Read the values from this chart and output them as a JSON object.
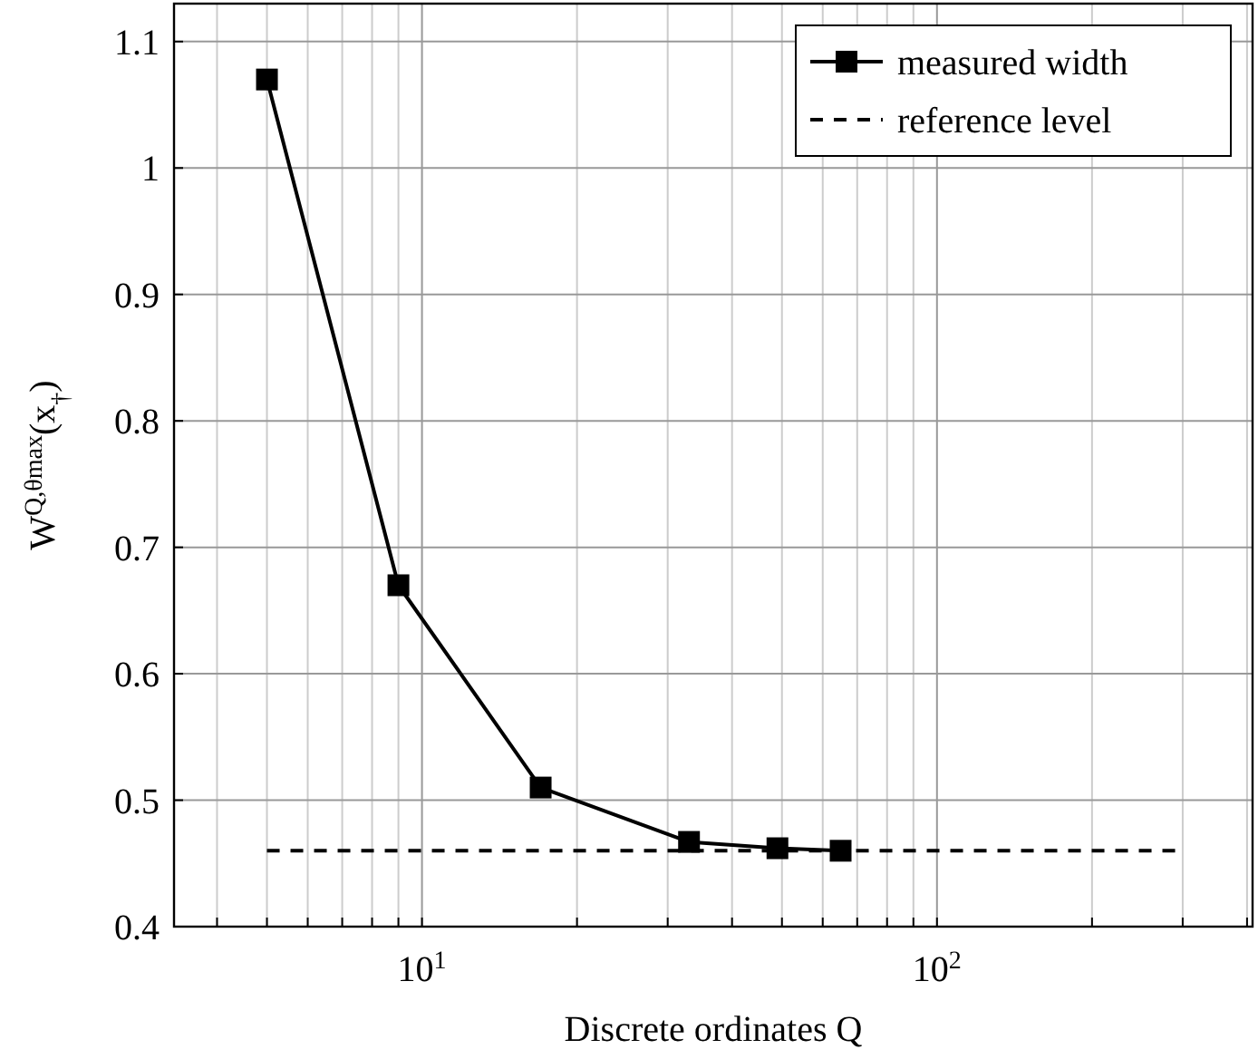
{
  "chart_data": {
    "type": "line",
    "xlabel": "Discrete ordinates Q",
    "ylabel": "W$^{Q,θmax}$(x$_{†}$)",
    "log": "x",
    "grid": true,
    "legend": "top right",
    "xlim": [
      3.3,
      410
    ],
    "ylim": [
      0.4,
      1.13
    ],
    "xticks": [
      {
        "value": 4,
        "label": null
      },
      {
        "value": 5,
        "label": null
      },
      {
        "value": 6,
        "label": null
      },
      {
        "value": 7,
        "label": null
      },
      {
        "value": 8,
        "label": null
      },
      {
        "value": 9,
        "label": null
      },
      {
        "value": 10,
        "label": "10$^{1}$"
      },
      {
        "value": 20,
        "label": null
      },
      {
        "value": 30,
        "label": null
      },
      {
        "value": 40,
        "label": null
      },
      {
        "value": 50,
        "label": null
      },
      {
        "value": 60,
        "label": null
      },
      {
        "value": 70,
        "label": null
      },
      {
        "value": 80,
        "label": null
      },
      {
        "value": 90,
        "label": null
      },
      {
        "value": 100,
        "label": "10$^{2}$"
      },
      {
        "value": 200,
        "label": null
      },
      {
        "value": 300,
        "label": null
      },
      {
        "value": 400,
        "label": null
      }
    ],
    "yticks": [
      0.4,
      0.5,
      0.6,
      0.7,
      0.8,
      0.9,
      {
        "value": 1,
        "label": "1"
      },
      1.1
    ],
    "series": [
      {
        "name": "measured width",
        "color": "#000000",
        "marker": "square",
        "line_style": "solid",
        "x": [
          5,
          9,
          17,
          33,
          49,
          65
        ],
        "values": [
          1.07,
          0.67,
          0.51,
          0.467,
          0.462,
          0.46
        ]
      },
      {
        "name": "reference level",
        "color": "#000000",
        "marker": "none",
        "line_style": "dashed",
        "x": [
          5,
          300
        ],
        "values": [
          0.46,
          0.46
        ]
      }
    ]
  }
}
